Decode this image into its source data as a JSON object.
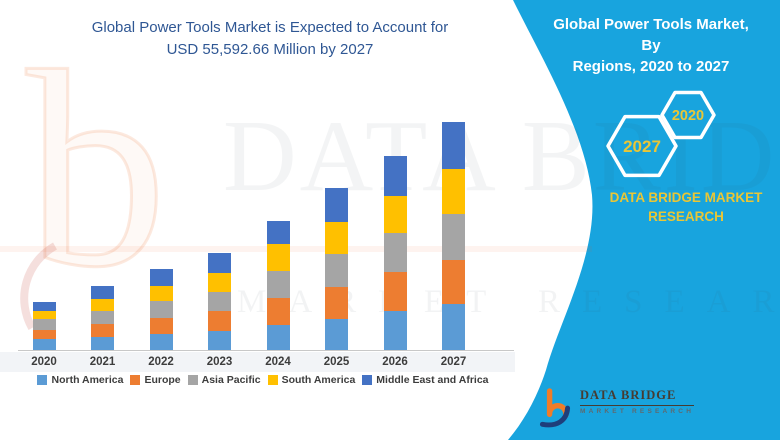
{
  "header": {
    "left_title_line1": "Global Power Tools Market is Expected to Account for",
    "left_title_line2": "USD 55,592.66 Million by 2027",
    "panel_title_line1": "Global Power Tools Market, By",
    "panel_title_line2": "Regions, 2020 to 2027"
  },
  "panel": {
    "hexagons": [
      {
        "label": "2027"
      },
      {
        "label": "2020"
      }
    ],
    "brand_line1": "DATA BRIDGE MARKET",
    "brand_line2": "RESEARCH"
  },
  "logo": {
    "name": "DATA BRIDGE",
    "subtitle": "MARKET RESEARCH"
  },
  "watermark": {
    "glyph": "b",
    "line1": "DATA BRIDGE",
    "line2": "MARKET RESEARCH"
  },
  "colors": {
    "accent": "#18a4de",
    "title_blue": "#2f5794",
    "gold": "#e9c636",
    "axis_text": "#3d3d3d",
    "logo_dark": "#463c32",
    "logo_gray": "#5e6a70"
  },
  "chart_data": {
    "type": "bar",
    "stacked": true,
    "title": "Global Power Tools Market, By Regions, 2020 to 2027",
    "unit": "USD Million",
    "categories": [
      "2020",
      "2021",
      "2022",
      "2023",
      "2024",
      "2025",
      "2026",
      "2027"
    ],
    "series": [
      {
        "name": "North America",
        "color": "#5B9BD5",
        "values": [
          2680,
          3165,
          3970,
          4725,
          6015,
          7550,
          9425,
          11130
        ]
      },
      {
        "name": "Europe",
        "color": "#ED7D31",
        "values": [
          2265,
          3090,
          3895,
          4725,
          6575,
          7790,
          9495,
          10790
        ]
      },
      {
        "name": "Asia Pacific",
        "color": "#A5A5A5",
        "values": [
          2605,
          3165,
          3970,
          4725,
          6575,
          8035,
          9495,
          11275
        ]
      },
      {
        "name": "South America",
        "color": "#FFC000",
        "values": [
          1950,
          2995,
          3895,
          4725,
          6575,
          7790,
          9255,
          11025
        ]
      },
      {
        "name": "Middle East and Africa",
        "color": "#4472C4",
        "values": [
          2190,
          3165,
          3995,
          4720,
          5845,
          8280,
          9740,
          11372.66
        ]
      }
    ],
    "totals": [
      11690,
      15580,
      19725,
      23620,
      31585,
      39445,
      47410,
      55592.66
    ],
    "xlabel": "",
    "ylabel": "",
    "ylim": [
      0,
      55592.66
    ],
    "gridlines": false,
    "y_axis_visible": false,
    "legend_position": "bottom"
  }
}
